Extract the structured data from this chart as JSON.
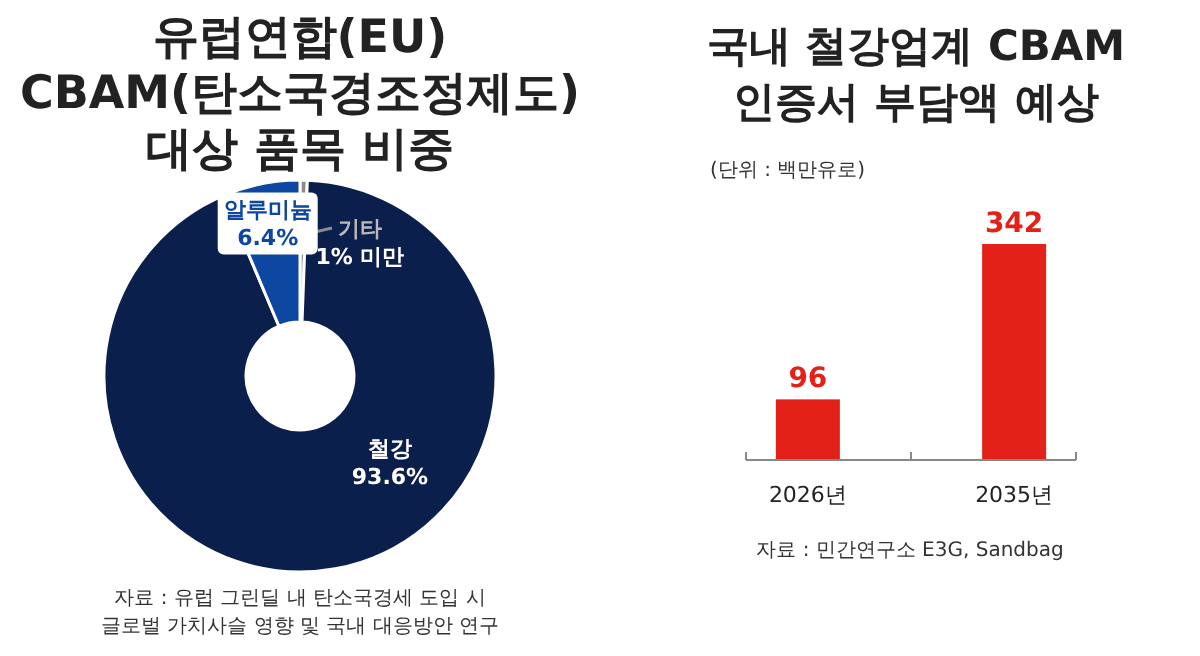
{
  "chart_data": [
    {
      "type": "donut",
      "title": "유럽연합(EU)\nCBAM(탄소국경조정제도)\n대상 품목 비중",
      "categories": [
        "기타",
        "철강",
        "알루미늄"
      ],
      "values": [
        0.6,
        93.6,
        6.4
      ],
      "colors": [
        "#8c8c8c",
        "#0b1f4d",
        "#0d47a1"
      ],
      "value_labels": [
        "1% 미만",
        "93.6%",
        "6.4%"
      ],
      "annotations": [
        "자료 : 유럽 그린딜 내 탄소국경세 도입 시\n글로벌 가치사슬 영향 및 국내 대응방안 연구"
      ]
    },
    {
      "type": "bar",
      "title": "국내 철강업계 CBAM\n인증서 부담액 예상",
      "subtitle": "(단위 : 백만유로)",
      "categories": [
        "2026년",
        "2035년"
      ],
      "values": [
        96,
        342
      ],
      "color": "#e32119",
      "data_labels": true,
      "annotations": [
        "자료 : 민간연구소 E3G, Sandbag"
      ]
    }
  ]
}
